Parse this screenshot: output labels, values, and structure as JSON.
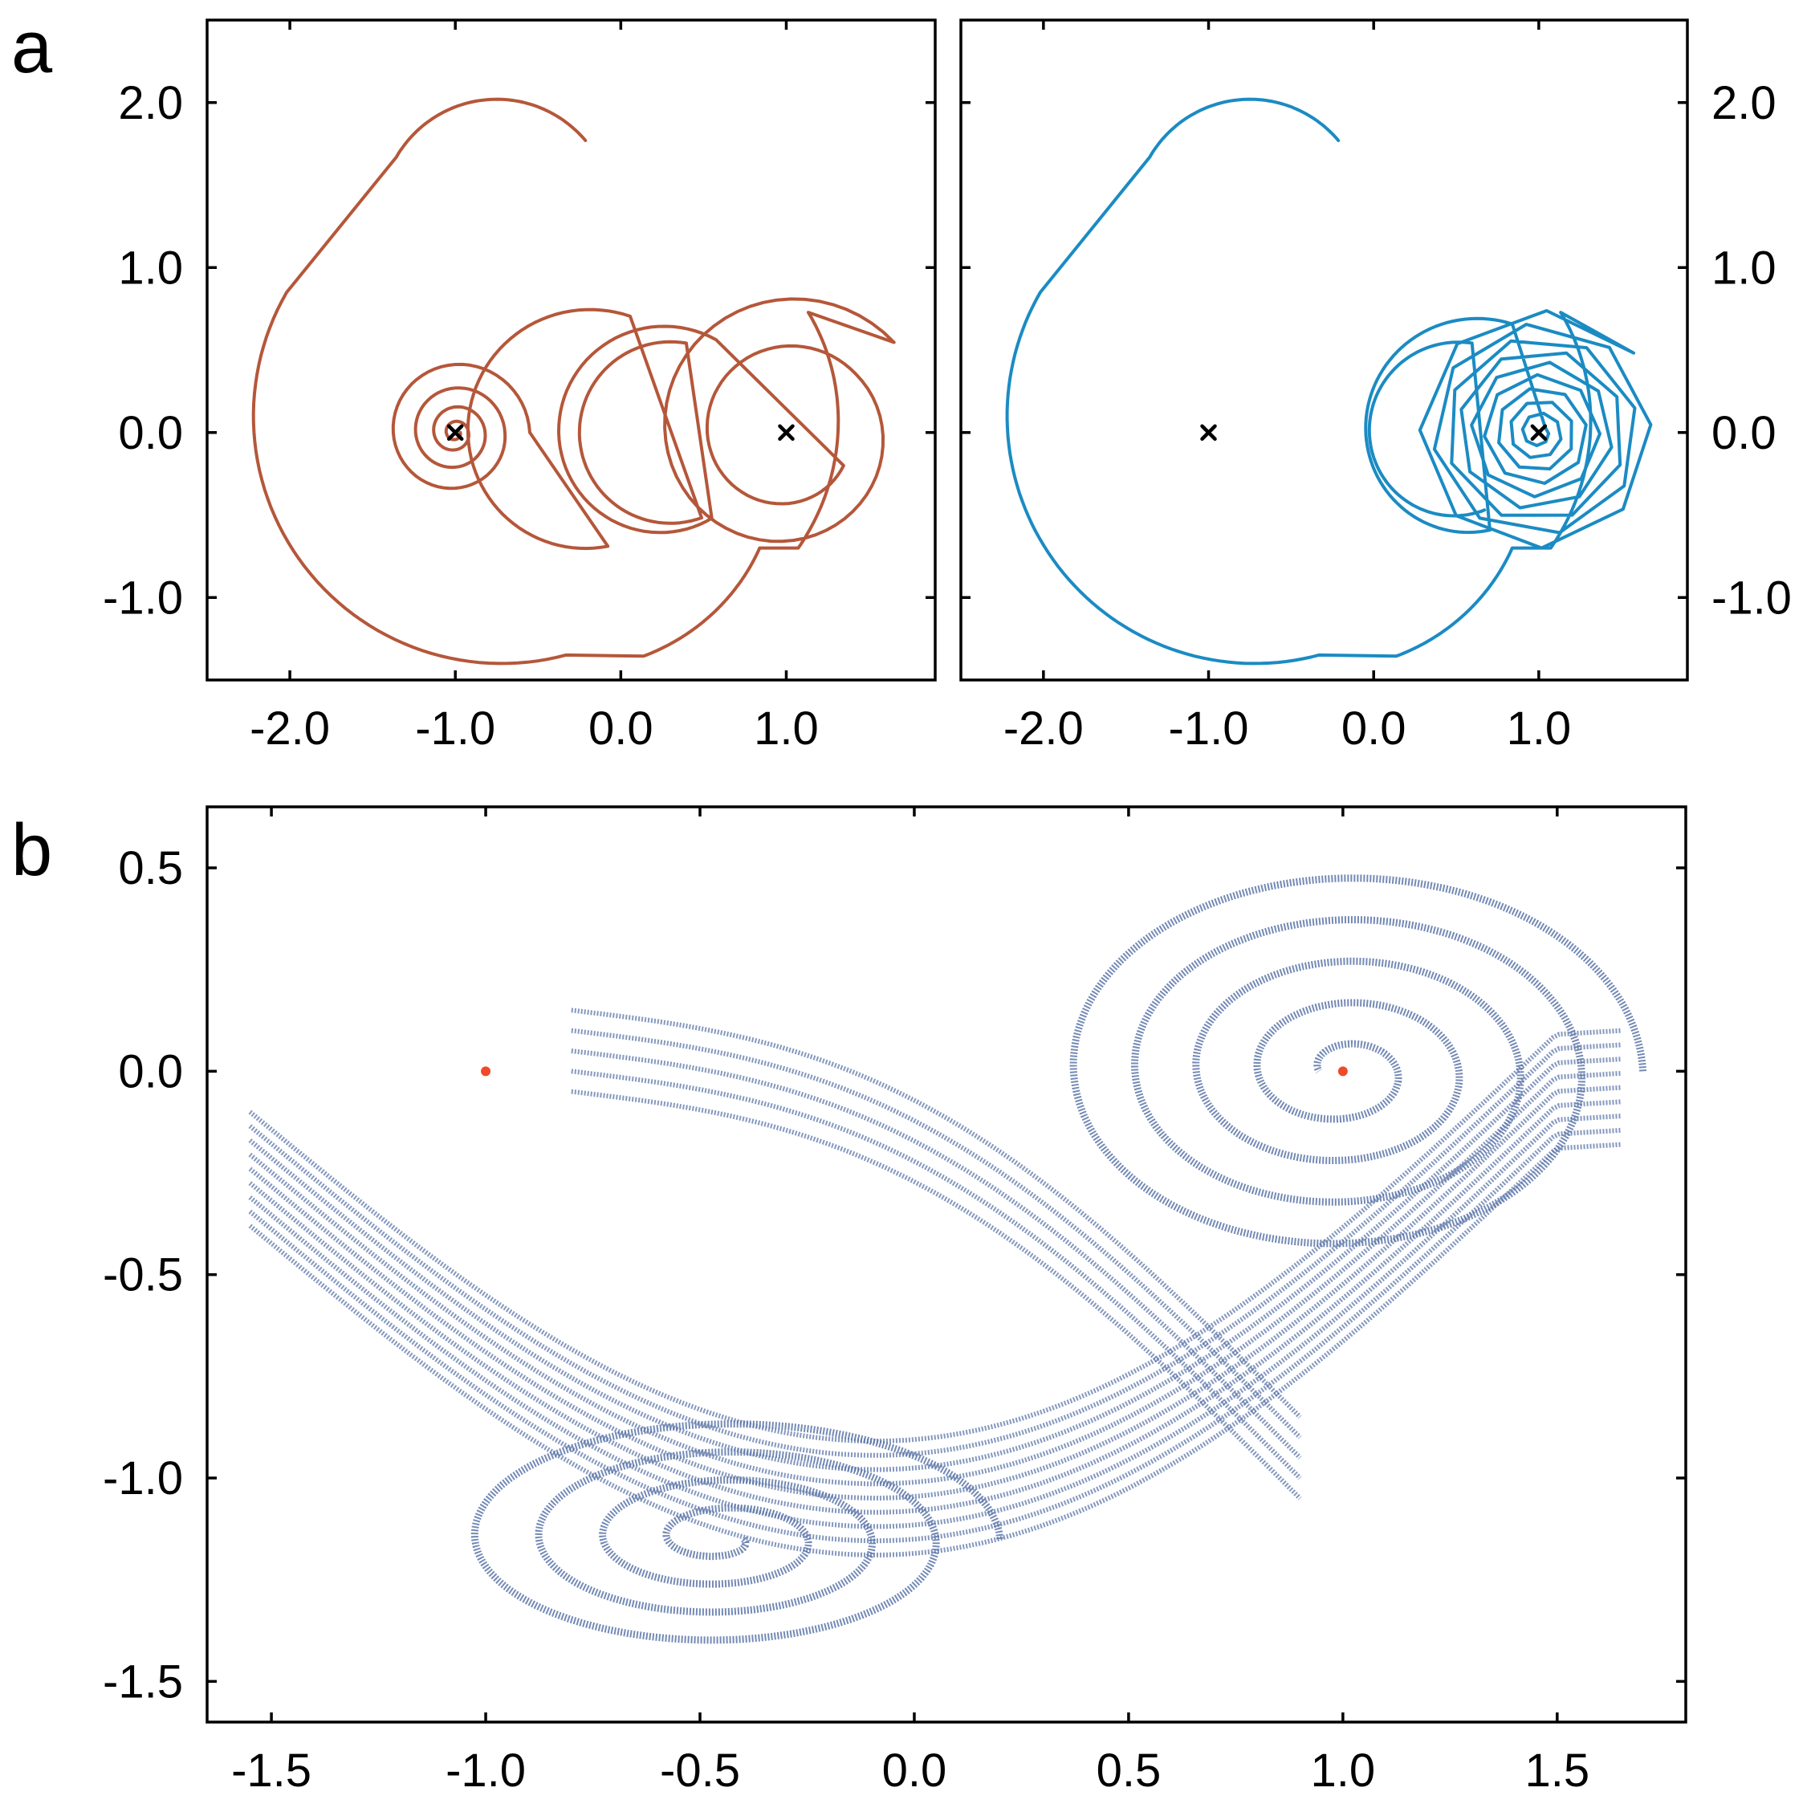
{
  "colors": {
    "left_trajectory": "#B5573A",
    "right_trajectory": "#1B8BC3",
    "attractor_points": "#5C76A8",
    "fixed_points_b": "#EF4A2A",
    "equilibrium_marker": "#000000",
    "axis": "#000000"
  },
  "chart_data": [
    {
      "id": "a-left",
      "panel_label": "a",
      "type": "line",
      "title": "",
      "xlabel": "",
      "ylabel": "",
      "xlim": [
        -2.5,
        1.9
      ],
      "ylim": [
        -1.5,
        2.5
      ],
      "xticks": [
        -2.0,
        -1.0,
        0.0,
        1.0
      ],
      "xtick_labels": [
        "-2.0",
        "-1.0",
        "0.0",
        "1.0"
      ],
      "yticks": [
        2.0,
        1.0,
        0.0,
        -1.0
      ],
      "ytick_labels": [
        "2.0",
        "1.0",
        "0.0",
        "-1.0"
      ],
      "y_axis_side": "left",
      "equilibria": [
        {
          "x": -1.0,
          "y": 0.0
        },
        {
          "x": 1.0,
          "y": 0.0
        }
      ],
      "trajectory": {
        "color": "left_trajectory",
        "segments": [
          {
            "cx": -0.75,
            "cy": 1.32,
            "r0": 0.68,
            "a0": 112,
            "a1": 165,
            "turns": 0.13
          },
          {
            "cx": -0.75,
            "cy": 0.1,
            "r0": 1.45,
            "a0": 170,
            "a1": 300,
            "turns": 0.24
          },
          {
            "cx": 0.1,
            "cy": 0.25,
            "r0": 1.25,
            "a0": 300,
            "a1": 390,
            "turns": 0.18
          },
          {
            "cx": 1.0,
            "cy": 0.0,
            "r0": 0.75,
            "a0": 20,
            "a1": 360,
            "turns": 0.9
          },
          {
            "cx": 0.12,
            "cy": 0.0,
            "r0": 0.55,
            "a0": 80,
            "a1": 300,
            "turns": 0.6
          },
          {
            "cx": -1.0,
            "cy": 0.0,
            "r0": 0.4,
            "a0": 0,
            "a1": 1440,
            "turns": 4.0
          },
          {
            "cx": 0.3,
            "cy": 0.0,
            "r0": 0.55,
            "a0": 100,
            "a1": 270,
            "turns": 0.45
          },
          {
            "cx": 1.0,
            "cy": 0.0,
            "r0": 0.4,
            "a0": 0,
            "a1": 360,
            "turns": 1.0
          }
        ]
      }
    },
    {
      "id": "a-right",
      "panel_label": "",
      "type": "line",
      "title": "",
      "xlabel": "",
      "ylabel": "",
      "xlim": [
        -2.5,
        1.9
      ],
      "ylim": [
        -1.5,
        2.5
      ],
      "xticks": [
        -2.0,
        -1.0,
        0.0,
        1.0
      ],
      "xtick_labels": [
        "-2.0",
        "-1.0",
        "0.0",
        "1.0"
      ],
      "yticks": [
        2.0,
        1.0,
        0.0,
        -1.0
      ],
      "ytick_labels": [
        "2.0",
        "1.0",
        "0.0",
        "-1.0"
      ],
      "y_axis_side": "right",
      "equilibria": [
        {
          "x": -1.0,
          "y": 0.0
        },
        {
          "x": 1.0,
          "y": 0.0
        }
      ],
      "trajectory": {
        "color": "right_trajectory",
        "spiral_center": {
          "x": 1.0,
          "y": 0.0
        },
        "spiral_outer_radius": 0.75,
        "spiral_inner_radius": 0.05,
        "spiral_turns": 9
      }
    },
    {
      "id": "b",
      "panel_label": "b",
      "type": "scatter",
      "title": "",
      "xlabel": "",
      "ylabel": "",
      "xlim": [
        -1.65,
        1.8
      ],
      "ylim": [
        -1.6,
        0.65
      ],
      "xticks": [
        -1.5,
        -1.0,
        -0.5,
        0.0,
        0.5,
        1.0,
        1.5
      ],
      "xtick_labels": [
        "-1.5",
        "-1.0",
        "-0.5",
        "0.0",
        "0.5",
        "1.0",
        "1.5"
      ],
      "yticks": [
        0.5,
        0.0,
        -0.5,
        -1.0,
        -1.5
      ],
      "ytick_labels": [
        "0.5",
        "0.0",
        "-0.5",
        "-1.0",
        "-1.5"
      ],
      "y_axis_side": "left",
      "fixed_points": [
        {
          "x": -1.0,
          "y": 0.0
        },
        {
          "x": 1.0,
          "y": 0.0
        }
      ],
      "attractor": {
        "color": "attractor_points",
        "spiral_center": {
          "x": 1.0,
          "y": 0.0
        },
        "spiral_outer": {
          "rx": 0.7,
          "ry": 0.5
        },
        "lower_spiral_center": {
          "x": -0.45,
          "y": -1.15
        },
        "lower_spiral_outer": {
          "rx": 0.65,
          "ry": 0.3
        }
      }
    }
  ]
}
